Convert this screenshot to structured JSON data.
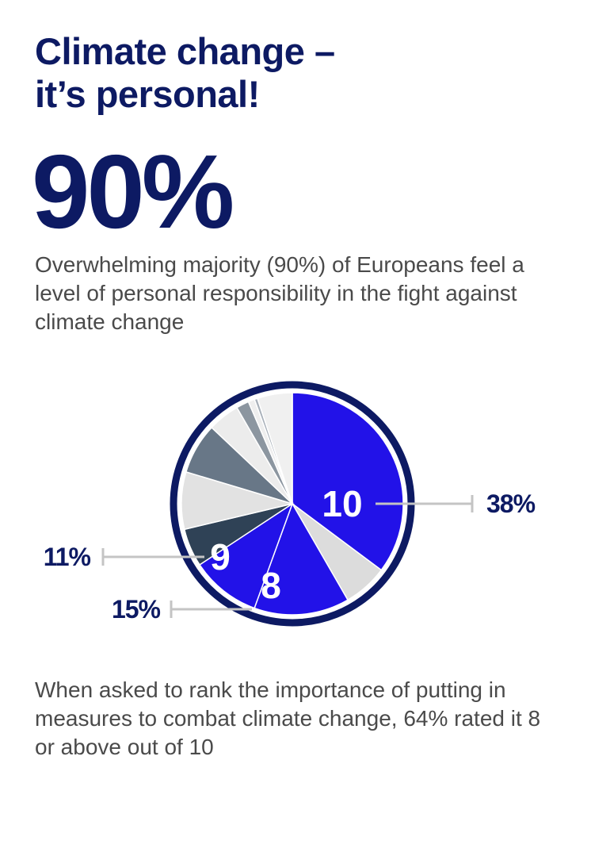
{
  "header": {
    "title_line1": "Climate change –",
    "title_line2": "it’s personal!"
  },
  "big_stat": "90%",
  "intro_text": "Overwhelming majority (90%) of Europeans feel a level of personal responsibility in the fight against climate change",
  "chart_data": {
    "type": "pie",
    "slices": [
      {
        "label": "10",
        "value": 38,
        "color": "#2212e8",
        "callout": "38%",
        "shows_label": true
      },
      {
        "label": "",
        "value": 7,
        "color": "#dcdcdc",
        "shows_label": false
      },
      {
        "label": "8",
        "value": 15,
        "color": "#2212e8",
        "callout": "15%",
        "shows_label": true
      },
      {
        "label": "9",
        "value": 11,
        "color": "#2212e8",
        "callout": "11%",
        "shows_label": true
      },
      {
        "label": "",
        "value": 6,
        "color": "#2f4256",
        "shows_label": false
      },
      {
        "label": "",
        "value": 9,
        "color": "#e2e2e2",
        "shows_label": false
      },
      {
        "label": "",
        "value": 8,
        "color": "#687787",
        "shows_label": false
      },
      {
        "label": "",
        "value": 5,
        "color": "#ececec",
        "shows_label": false
      },
      {
        "label": "",
        "value": 2,
        "color": "#8c96a0",
        "shows_label": false
      },
      {
        "label": "",
        "value": 1,
        "color": "#eeeeee",
        "shows_label": false
      },
      {
        "label": "",
        "value": 0.5,
        "color": "#a9b1ba",
        "shows_label": false
      },
      {
        "label": "",
        "value": 5.5,
        "color": "#f0f0f0",
        "shows_label": false
      }
    ],
    "ring_color": "#0d1a63",
    "callout_color": "#0d1a63",
    "leader_color": "#c4c4c4"
  },
  "outro_text": "When asked to rank the importance of putting in measures to combat climate change, 64% rated it 8 or above out of 10"
}
